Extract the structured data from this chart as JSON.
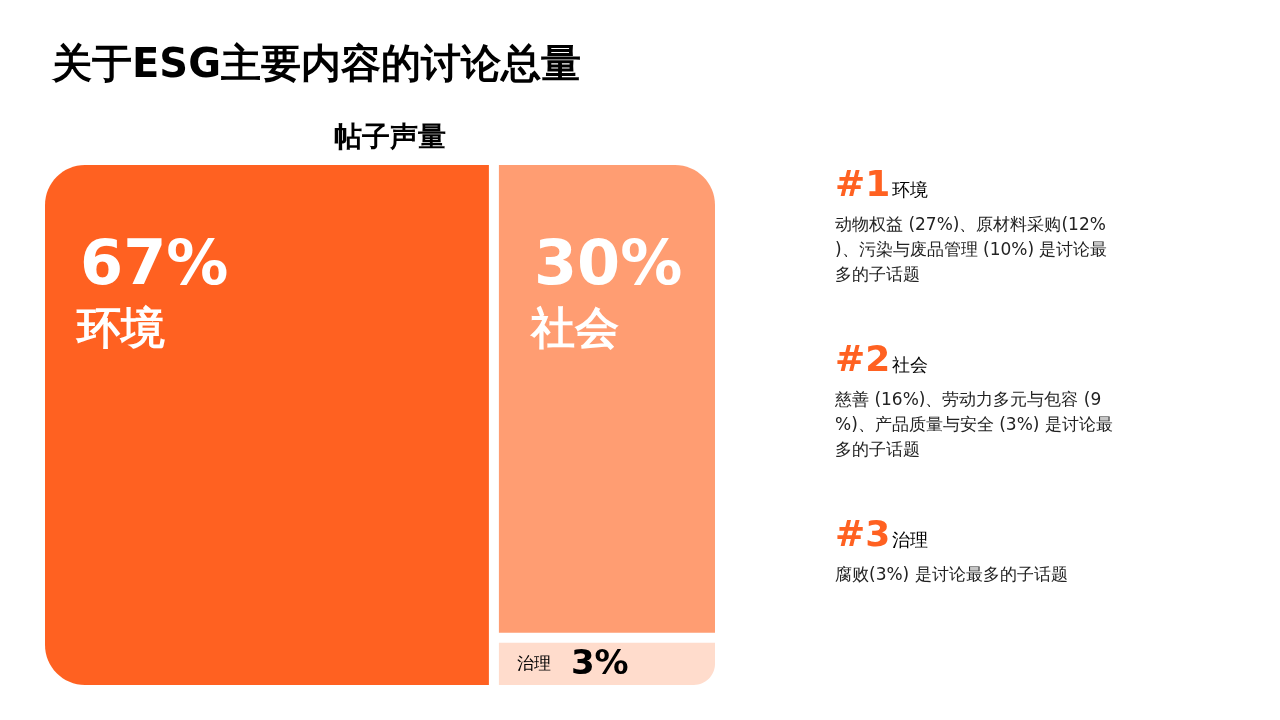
{
  "chart_data": {
    "type": "other",
    "title": "关于ESG主要内容的讨论总量",
    "subtitle": "帖子声量",
    "categories": [
      "环境",
      "社会",
      "治理"
    ],
    "values": [
      67,
      30,
      3
    ],
    "value_labels": [
      "67%",
      "30%",
      "3%"
    ],
    "colors": [
      "#ff6121",
      "#ff9d72",
      "#ffdccc"
    ],
    "annotations": [
      "#1",
      "动物权益 (27%)、原材料采购(12%)、污染与废品管理 (10%) 是讨论最多的子话题",
      "#2",
      "慈善 (16%)、劳动力多元与包容 (9%)、产品质量与安全 (3%) 是讨论最多的子话题",
      "#3",
      "腐败(3%) 是讨论最多的子话题"
    ]
  }
}
